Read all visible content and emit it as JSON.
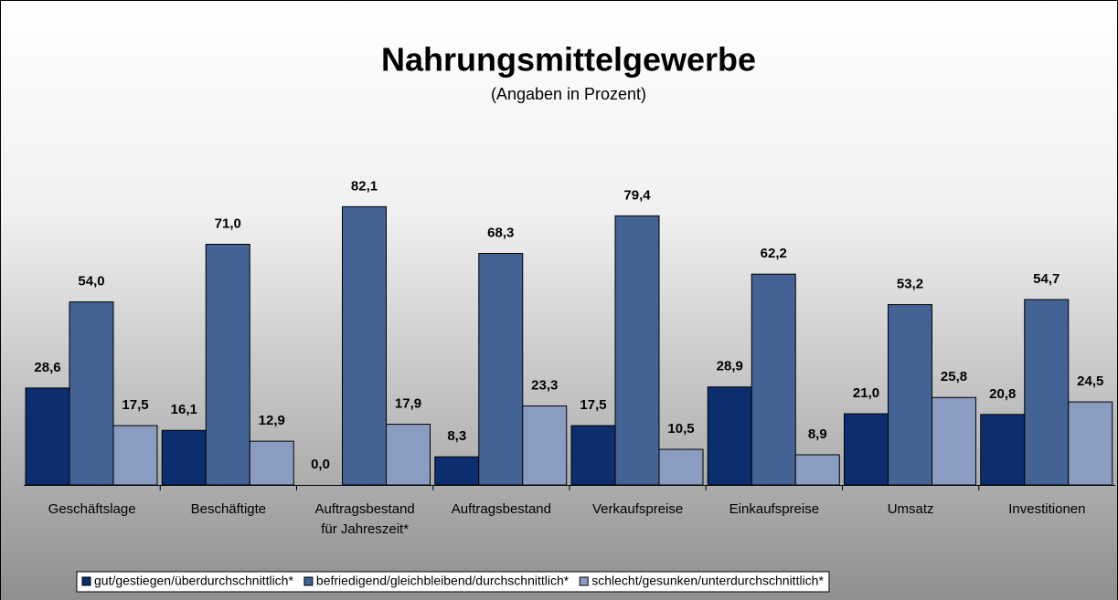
{
  "chart_data": {
    "type": "bar",
    "title": "Nahrungsmittelgewerbe",
    "subtitle": "(Angaben in Prozent)",
    "categories": [
      "Geschäftslage",
      "Beschäftigte",
      "Auftragsbestand\nfür Jahreszeit*",
      "Auftragsbestand",
      "Verkaufspreise",
      "Einkaufspreise",
      "Umsatz",
      "Investitionen"
    ],
    "ylim": [
      0,
      90
    ],
    "series": [
      {
        "name": "gut/gestiegen/überdurchschnittlich*",
        "color": "#0c2d6e",
        "values": [
          28.6,
          16.1,
          0.0,
          8.3,
          17.5,
          28.9,
          21.0,
          20.8
        ],
        "value_labels": [
          "28,6",
          "16,1",
          "0,0",
          "8,3",
          "17,5",
          "28,9",
          "21,0",
          "20,8"
        ]
      },
      {
        "name": "befriedigend/gleichbleibend/durchschnittlich*",
        "color": "#426394",
        "values": [
          54.0,
          71.0,
          82.1,
          68.3,
          79.4,
          62.2,
          53.2,
          54.7
        ],
        "value_labels": [
          "54,0",
          "71,0",
          "82,1",
          "68,3",
          "79,4",
          "62,2",
          "53,2",
          "54,7"
        ]
      },
      {
        "name": "schlecht/gesunken/unterdurchschnittlich*",
        "color": "#8a9cc2",
        "values": [
          17.5,
          12.9,
          17.9,
          23.3,
          10.5,
          8.9,
          25.8,
          24.5
        ],
        "value_labels": [
          "17,5",
          "12,9",
          "17,9",
          "23,3",
          "10,5",
          "8,9",
          "25,8",
          "24,5"
        ]
      }
    ]
  }
}
